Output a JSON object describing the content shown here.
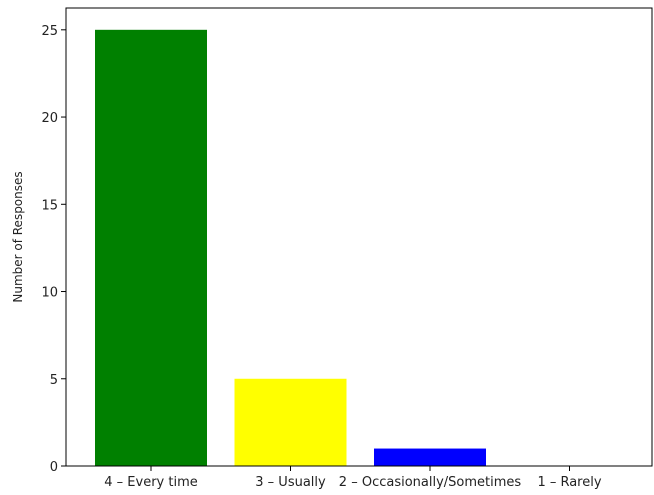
{
  "chart_data": {
    "type": "bar",
    "categories": [
      "4 – Every time",
      "3 – Usually",
      "2 – Occasionally/Sometimes",
      "1 – Rarely"
    ],
    "values": [
      25,
      5,
      1,
      0
    ],
    "colors": [
      "#008000",
      "#ffff00",
      "#0000ff",
      "#ff0000"
    ],
    "xlabel": "",
    "ylabel": "Number of Responses",
    "ylim": [
      0,
      26.25
    ],
    "yticks": [
      0,
      5,
      10,
      15,
      20,
      25
    ],
    "grid": false
  }
}
